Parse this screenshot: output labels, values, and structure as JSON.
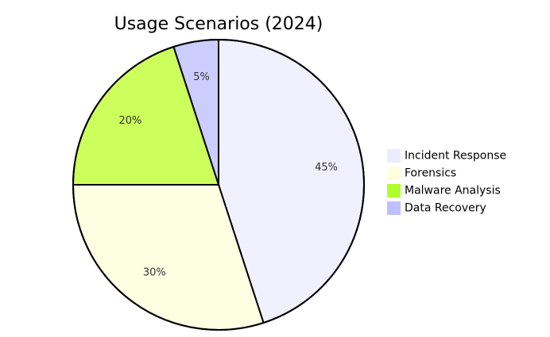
{
  "chart_data": {
    "type": "pie",
    "title": "Usage Scenarios (2024)",
    "slices": [
      {
        "label": "Incident Response",
        "value": 45,
        "display": "45%",
        "color": "#f1f0ff"
      },
      {
        "label": "Forensics",
        "value": 30,
        "display": "30%",
        "color": "#fdffe3"
      },
      {
        "label": "Malware Analysis",
        "value": 20,
        "display": "20%",
        "color": "#ccff5c"
      },
      {
        "label": "Data Recovery",
        "value": 5,
        "display": "5%",
        "color": "#ccccff"
      }
    ],
    "legend_colors": [
      "#ececff",
      "#ffffde",
      "#b0ff2d",
      "#bfbfff"
    ],
    "legend_position": "right",
    "start_angle_deg": 0,
    "direction": "clockwise"
  }
}
